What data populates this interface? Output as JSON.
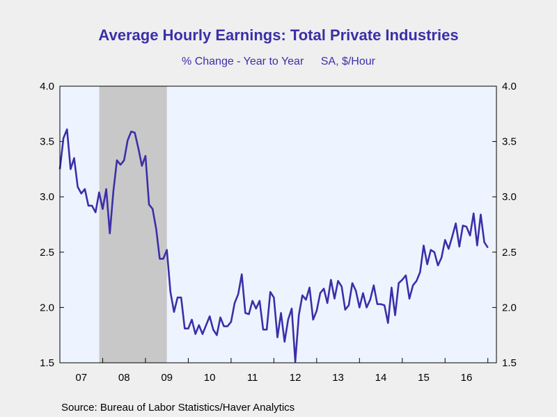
{
  "chart_data": {
    "type": "line",
    "title": "Average Hourly Earnings: Total Private Industries",
    "subtitle_left": "% Change - Year to Year",
    "subtitle_right": "SA, $/Hour",
    "source": "Source:  Bureau of Labor Statistics/Haver Analytics",
    "ylim": [
      1.5,
      4.0
    ],
    "yticks": [
      "1.5",
      "2.0",
      "2.5",
      "3.0",
      "3.5",
      "4.0"
    ],
    "xlim": [
      2007.0,
      2017.2
    ],
    "xtick_labels": [
      "07",
      "08",
      "09",
      "10",
      "11",
      "12",
      "13",
      "14",
      "15",
      "16"
    ],
    "grid": false,
    "line_color": "#3b2fa8",
    "plot_bg": "#eef4ff",
    "recession_color": "#c8c8c8",
    "recession": [
      2007.92,
      2009.5
    ],
    "series": [
      {
        "values": [
          3.25,
          3.53,
          3.61,
          3.25,
          3.35,
          3.09,
          3.03,
          3.07,
          2.92,
          2.92,
          2.86,
          3.04,
          2.89,
          3.07,
          2.67,
          3.05,
          3.33,
          3.29,
          3.33,
          3.51,
          3.59,
          3.58,
          3.44,
          3.28,
          3.37,
          2.93,
          2.89,
          2.71,
          2.44,
          2.44,
          2.52,
          2.14,
          1.96,
          2.09,
          2.09,
          1.81,
          1.81,
          1.89,
          1.76,
          1.84,
          1.76,
          1.84,
          1.92,
          1.8,
          1.75,
          1.91,
          1.83,
          1.83,
          1.87,
          2.04,
          2.12,
          2.3,
          1.95,
          1.94,
          2.06,
          1.99,
          2.06,
          1.8,
          1.8,
          2.14,
          2.09,
          1.73,
          1.95,
          1.69,
          1.89,
          1.99,
          1.51,
          1.93,
          2.11,
          2.07,
          2.18,
          1.89,
          1.97,
          2.13,
          2.17,
          2.04,
          2.25,
          2.08,
          2.24,
          2.19,
          1.98,
          2.02,
          2.22,
          2.15,
          2.0,
          2.13,
          2.0,
          2.07,
          2.2,
          2.03,
          2.03,
          2.02,
          1.86,
          2.18,
          1.93,
          2.22,
          2.25,
          2.29,
          2.08,
          2.2,
          2.24,
          2.32,
          2.56,
          2.39,
          2.52,
          2.5,
          2.38,
          2.45,
          2.61,
          2.53,
          2.64,
          2.76,
          2.55,
          2.74,
          2.73,
          2.65,
          2.85,
          2.56,
          2.84,
          2.59,
          2.54
        ]
      }
    ]
  }
}
